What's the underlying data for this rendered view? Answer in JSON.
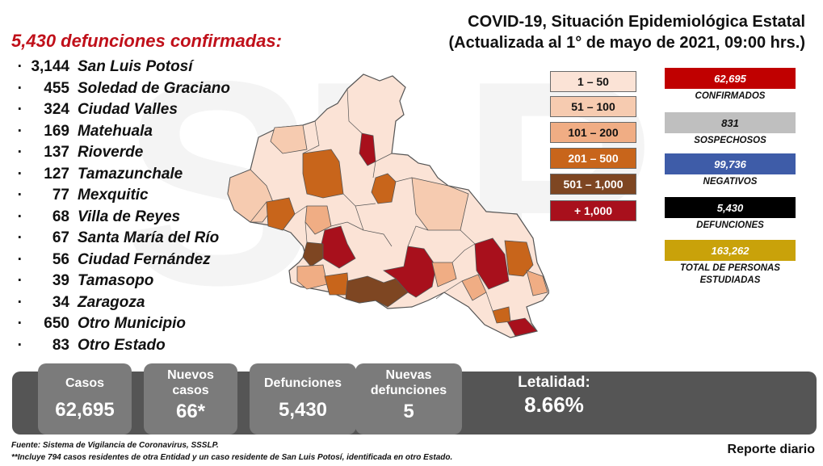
{
  "headline": {
    "left_title": "5,430 defunciones confirmadas:",
    "title_line1": "COVID-19, Situación Epidemiológica Estatal",
    "title_line2": "(Actualizada al 1° de mayo de 2021, 09:00 hrs.)"
  },
  "municipalities": [
    {
      "value": "3,144",
      "name": "San Luis Potosí"
    },
    {
      "value": "455",
      "name": "Soledad de Graciano"
    },
    {
      "value": "324",
      "name": "Ciudad Valles"
    },
    {
      "value": "169",
      "name": "Matehuala"
    },
    {
      "value": "137",
      "name": "Rioverde"
    },
    {
      "value": "127",
      "name": "Tamazunchale"
    },
    {
      "value": "77",
      "name": "Mexquitic"
    },
    {
      "value": "68",
      "name": "Villa de Reyes"
    },
    {
      "value": "67",
      "name": "Santa María del Río"
    },
    {
      "value": "56",
      "name": "Ciudad Fernández"
    },
    {
      "value": "39",
      "name": "Tamasopo"
    },
    {
      "value": "34",
      "name": "Zaragoza"
    },
    {
      "value": "650",
      "name": "Otro Municipio"
    },
    {
      "value": "83",
      "name": "Otro Estado"
    }
  ],
  "legend": [
    {
      "label": "1 – 50",
      "color": "#fbe3d6",
      "text_color": "#111111"
    },
    {
      "label": "51 – 100",
      "color": "#f6cbb0",
      "text_color": "#111111"
    },
    {
      "label": "101 – 200",
      "color": "#f0ad84",
      "text_color": "#111111"
    },
    {
      "label": "201 – 500",
      "color": "#c8651b",
      "text_color": "#ffffff"
    },
    {
      "label": "501 – 1,000",
      "color": "#7e4622",
      "text_color": "#ffffff"
    },
    {
      "label": "+ 1,000",
      "color": "#a8101c",
      "text_color": "#ffffff"
    }
  ],
  "stats": [
    {
      "value": "62,695",
      "label": "CONFIRMADOS",
      "color": "#c00000"
    },
    {
      "value": "831",
      "label": "SOSPECHOSOS",
      "color": "#bfbfbf"
    },
    {
      "value": "99,736",
      "label": "NEGATIVOS",
      "color": "#3e5ca8"
    },
    {
      "value": "5,430",
      "label": "DEFUNCIONES",
      "color": "#000000"
    },
    {
      "value": "163,262",
      "label": "TOTAL DE PERSONAS ESTUDIADAS",
      "color": "#c9a20a"
    }
  ],
  "summary": {
    "casos_label": "Casos",
    "casos_value": "62,695",
    "nuevos_label_1": "Nuevos",
    "nuevos_label_2": "casos",
    "nuevos_value": "66*",
    "defunciones_label": "Defunciones",
    "defunciones_value": "5,430",
    "nuevas_def_label_1": "Nuevas",
    "nuevas_def_label_2": "defunciones",
    "nuevas_def_value": "5",
    "letalidad_label": "Letalidad:",
    "letalidad_value": "8.66%"
  },
  "footer": {
    "source": "Fuente: Sistema de Vigilancia de Coronavirus, SSSLP.",
    "note": "**Incluye 794 casos residentes de otra Entidad y un caso residente de San Luis Potosí, identificada en otro Estado.",
    "report": "Reporte diario"
  },
  "brand": {
    "watermark": "SLP"
  }
}
